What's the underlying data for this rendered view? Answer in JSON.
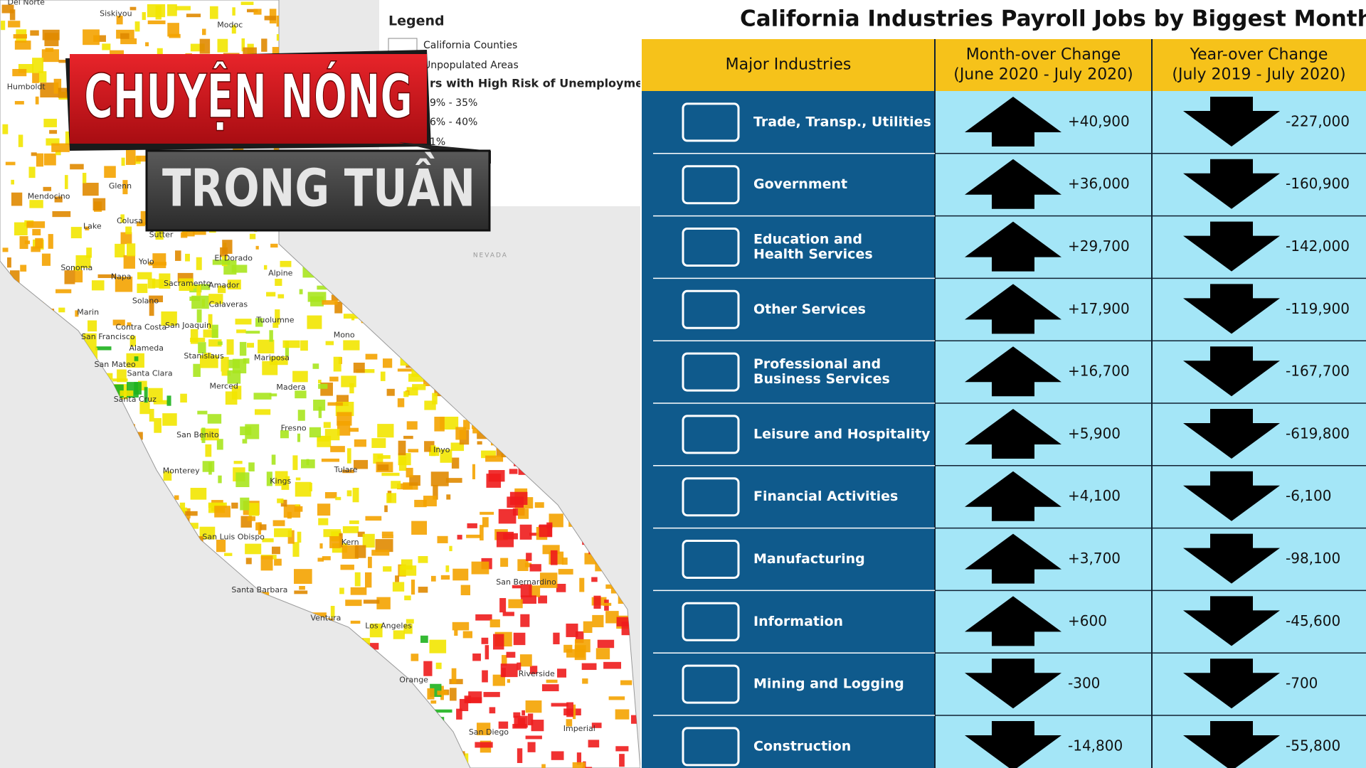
{
  "banner": {
    "line1": "CHUYỆN NÓNG",
    "line2": "TRONG TUẦN"
  },
  "map": {
    "legend": {
      "title": "Legend",
      "items": [
        "California Counties",
        "Unpopulated Areas"
      ],
      "subtitle": "rs with High Risk of Unemployment",
      "ranges": [
        "9% - 35%",
        "6% - 40%",
        "1%"
      ]
    },
    "neighbor": "NEVADA",
    "labels": [
      "Del Norte",
      "Siskiyou",
      "Modoc",
      "Humboldt",
      "Glenn",
      "Mendocino",
      "Lake",
      "Colusa",
      "Sutter",
      "Yolo",
      "El Dorado",
      "Sonoma",
      "Napa",
      "Alpine",
      "Sacramento",
      "Amador",
      "Solano",
      "Calaveras",
      "Marin",
      "Contra Costa",
      "San Joaquin",
      "Tuolumne",
      "San Francisco",
      "Mono",
      "Alameda",
      "San Mateo",
      "Stanislaus",
      "Mariposa",
      "Santa Clara",
      "Merced",
      "Madera",
      "Santa Cruz",
      "Fresno",
      "San Benito",
      "Inyo",
      "Monterey",
      "Tulare",
      "Kings",
      "San Luis Obispo",
      "Kern",
      "San Bernardino",
      "Santa Barbara",
      "Ventura",
      "Los Angeles",
      "Riverside",
      "Orange",
      "San Diego",
      "Imperial"
    ]
  },
  "table": {
    "title": "California Industries Payroll Jobs by Biggest Month-Over",
    "headers": [
      [
        "Major Industries"
      ],
      [
        "Month-over Change",
        "(June 2020 - July 2020)"
      ],
      [
        "Year-over Change",
        "(July 2019 - July 2020)"
      ]
    ],
    "rows": [
      {
        "name": [
          "Trade, Transp., Utilities"
        ],
        "month": "+40,900",
        "year": "-227,000"
      },
      {
        "name": [
          "Government"
        ],
        "month": "+36,000",
        "year": "-160,900"
      },
      {
        "name": [
          "Education and",
          "Health Services"
        ],
        "month": "+29,700",
        "year": "-142,000"
      },
      {
        "name": [
          "Other Services"
        ],
        "month": "+17,900",
        "year": "-119,900"
      },
      {
        "name": [
          "Professional and",
          "Business Services"
        ],
        "month": "+16,700",
        "year": "-167,700"
      },
      {
        "name": [
          "Leisure and Hospitality"
        ],
        "month": "+5,900",
        "year": "-619,800"
      },
      {
        "name": [
          "Financial Activities"
        ],
        "month": "+4,100",
        "year": "-6,100"
      },
      {
        "name": [
          "Manufacturing"
        ],
        "month": "+3,700",
        "year": "-98,100"
      },
      {
        "name": [
          "Information"
        ],
        "month": "+600",
        "year": "-45,600"
      },
      {
        "name": [
          "Mining and Logging"
        ],
        "month": "-300",
        "year": "-700"
      },
      {
        "name": [
          "Construction"
        ],
        "month": "-14,800",
        "year": "-55,800"
      }
    ]
  }
}
